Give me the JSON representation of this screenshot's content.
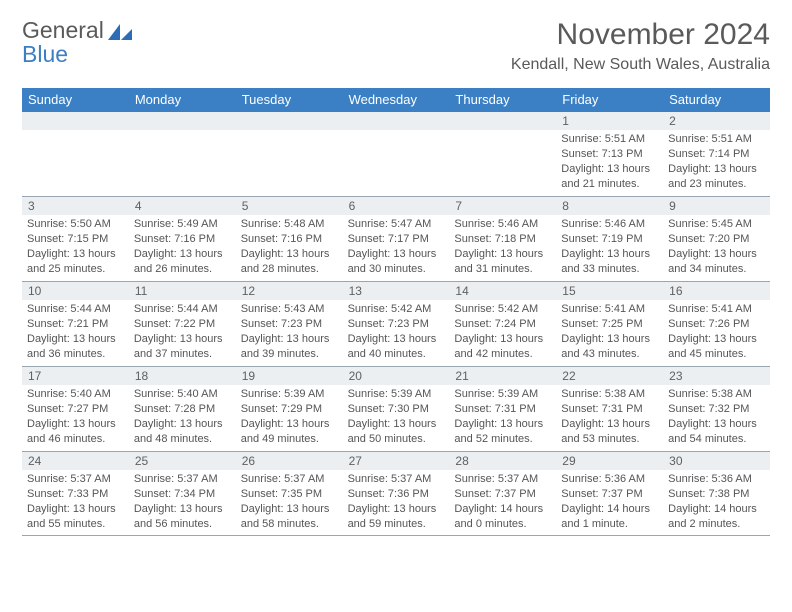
{
  "logo": {
    "line1": "General",
    "line2": "Blue"
  },
  "title": "November 2024",
  "location": "Kendall, New South Wales, Australia",
  "dayNames": [
    "Sunday",
    "Monday",
    "Tuesday",
    "Wednesday",
    "Thursday",
    "Friday",
    "Saturday"
  ],
  "colors": {
    "headerBar": "#3b7fc4",
    "dayNumBg": "#eceff1",
    "ruleLine": "#9aa6b2",
    "bodyText": "#555555",
    "titleText": "#5a5a5a"
  },
  "weeks": [
    [
      null,
      null,
      null,
      null,
      null,
      {
        "n": "1",
        "sunrise": "5:51 AM",
        "sunset": "7:13 PM",
        "daylight": "13 hours and 21 minutes."
      },
      {
        "n": "2",
        "sunrise": "5:51 AM",
        "sunset": "7:14 PM",
        "daylight": "13 hours and 23 minutes."
      }
    ],
    [
      {
        "n": "3",
        "sunrise": "5:50 AM",
        "sunset": "7:15 PM",
        "daylight": "13 hours and 25 minutes."
      },
      {
        "n": "4",
        "sunrise": "5:49 AM",
        "sunset": "7:16 PM",
        "daylight": "13 hours and 26 minutes."
      },
      {
        "n": "5",
        "sunrise": "5:48 AM",
        "sunset": "7:16 PM",
        "daylight": "13 hours and 28 minutes."
      },
      {
        "n": "6",
        "sunrise": "5:47 AM",
        "sunset": "7:17 PM",
        "daylight": "13 hours and 30 minutes."
      },
      {
        "n": "7",
        "sunrise": "5:46 AM",
        "sunset": "7:18 PM",
        "daylight": "13 hours and 31 minutes."
      },
      {
        "n": "8",
        "sunrise": "5:46 AM",
        "sunset": "7:19 PM",
        "daylight": "13 hours and 33 minutes."
      },
      {
        "n": "9",
        "sunrise": "5:45 AM",
        "sunset": "7:20 PM",
        "daylight": "13 hours and 34 minutes."
      }
    ],
    [
      {
        "n": "10",
        "sunrise": "5:44 AM",
        "sunset": "7:21 PM",
        "daylight": "13 hours and 36 minutes."
      },
      {
        "n": "11",
        "sunrise": "5:44 AM",
        "sunset": "7:22 PM",
        "daylight": "13 hours and 37 minutes."
      },
      {
        "n": "12",
        "sunrise": "5:43 AM",
        "sunset": "7:23 PM",
        "daylight": "13 hours and 39 minutes."
      },
      {
        "n": "13",
        "sunrise": "5:42 AM",
        "sunset": "7:23 PM",
        "daylight": "13 hours and 40 minutes."
      },
      {
        "n": "14",
        "sunrise": "5:42 AM",
        "sunset": "7:24 PM",
        "daylight": "13 hours and 42 minutes."
      },
      {
        "n": "15",
        "sunrise": "5:41 AM",
        "sunset": "7:25 PM",
        "daylight": "13 hours and 43 minutes."
      },
      {
        "n": "16",
        "sunrise": "5:41 AM",
        "sunset": "7:26 PM",
        "daylight": "13 hours and 45 minutes."
      }
    ],
    [
      {
        "n": "17",
        "sunrise": "5:40 AM",
        "sunset": "7:27 PM",
        "daylight": "13 hours and 46 minutes."
      },
      {
        "n": "18",
        "sunrise": "5:40 AM",
        "sunset": "7:28 PM",
        "daylight": "13 hours and 48 minutes."
      },
      {
        "n": "19",
        "sunrise": "5:39 AM",
        "sunset": "7:29 PM",
        "daylight": "13 hours and 49 minutes."
      },
      {
        "n": "20",
        "sunrise": "5:39 AM",
        "sunset": "7:30 PM",
        "daylight": "13 hours and 50 minutes."
      },
      {
        "n": "21",
        "sunrise": "5:39 AM",
        "sunset": "7:31 PM",
        "daylight": "13 hours and 52 minutes."
      },
      {
        "n": "22",
        "sunrise": "5:38 AM",
        "sunset": "7:31 PM",
        "daylight": "13 hours and 53 minutes."
      },
      {
        "n": "23",
        "sunrise": "5:38 AM",
        "sunset": "7:32 PM",
        "daylight": "13 hours and 54 minutes."
      }
    ],
    [
      {
        "n": "24",
        "sunrise": "5:37 AM",
        "sunset": "7:33 PM",
        "daylight": "13 hours and 55 minutes."
      },
      {
        "n": "25",
        "sunrise": "5:37 AM",
        "sunset": "7:34 PM",
        "daylight": "13 hours and 56 minutes."
      },
      {
        "n": "26",
        "sunrise": "5:37 AM",
        "sunset": "7:35 PM",
        "daylight": "13 hours and 58 minutes."
      },
      {
        "n": "27",
        "sunrise": "5:37 AM",
        "sunset": "7:36 PM",
        "daylight": "13 hours and 59 minutes."
      },
      {
        "n": "28",
        "sunrise": "5:37 AM",
        "sunset": "7:37 PM",
        "daylight": "14 hours and 0 minutes."
      },
      {
        "n": "29",
        "sunrise": "5:36 AM",
        "sunset": "7:37 PM",
        "daylight": "14 hours and 1 minute."
      },
      {
        "n": "30",
        "sunrise": "5:36 AM",
        "sunset": "7:38 PM",
        "daylight": "14 hours and 2 minutes."
      }
    ]
  ]
}
